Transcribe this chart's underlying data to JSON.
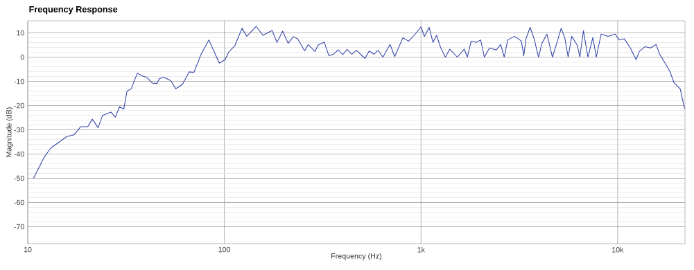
{
  "chart_data": {
    "type": "line",
    "title": "Frequency Response",
    "xlabel": "Frequency (Hz)",
    "ylabel": "Magnitude (dB)",
    "log": "x",
    "grid": true,
    "xlim": [
      10,
      22000
    ],
    "ylim": [
      -77,
      15
    ],
    "xticks": [
      10,
      100,
      {
        "value": 1000,
        "label": "1k"
      },
      {
        "value": 10000,
        "label": "10k"
      }
    ],
    "yticks": [
      -70,
      -60,
      -50,
      -40,
      -30,
      -20,
      -10,
      0,
      10
    ],
    "x": [
      10.7,
      12.1,
      13.1,
      14.2,
      15.8,
      17.2,
      18.6,
      20.2,
      21.3,
      22.8,
      24.0,
      26.5,
      27.9,
      29.3,
      30.8,
      32.0,
      33.6,
      36.1,
      38.1,
      40.3,
      43.0,
      45.4,
      46.6,
      49.2,
      53.4,
      56.6,
      61.2,
      66.3,
      70.0,
      75.9,
      83.4,
      89.2,
      94.3,
      101,
      105,
      113,
      123,
      130,
      145,
      157,
      175,
      185,
      198,
      211,
      224,
      236,
      256,
      267,
      289,
      300,
      322,
      340,
      358,
      380,
      400,
      420,
      445,
      470,
      495,
      519,
      545,
      576,
      605,
      640,
      696,
      735,
      809,
      864,
      935,
      1000,
      1040,
      1100,
      1150,
      1200,
      1260,
      1330,
      1400,
      1530,
      1660,
      1720,
      1800,
      1920,
      2010,
      2100,
      2230,
      2410,
      2540,
      2650,
      2760,
      2990,
      3240,
      3330,
      3420,
      3590,
      3760,
      3960,
      4120,
      4370,
      4660,
      4940,
      5160,
      5380,
      5600,
      5840,
      6240,
      6420,
      6700,
      7060,
      7480,
      7790,
      8240,
      8940,
      9710,
      10200,
      10800,
      11600,
      12400,
      12900,
      13800,
      14700,
      15700,
      16300,
      17400,
      18400,
      19400,
      20800,
      21900
    ],
    "series": [
      {
        "color": "#3344aa",
        "values": [
          -50,
          -41.4,
          -37.5,
          -35.5,
          -32.8,
          -32.1,
          -28.7,
          -28.7,
          -25.6,
          -29.1,
          -24.1,
          -22.7,
          -24.8,
          -20.5,
          -21.4,
          -14.0,
          -13.1,
          -6.6,
          -7.8,
          -8.3,
          -10.7,
          -10.9,
          -8.9,
          -8.3,
          -9.7,
          -13.1,
          -11.2,
          -6.1,
          -6.3,
          0.9,
          7.1,
          1.8,
          -2.5,
          -1.0,
          2.0,
          4.7,
          11.9,
          8.6,
          12.7,
          9.0,
          11.0,
          6.1,
          10.7,
          5.7,
          8.4,
          7.6,
          2.6,
          5.2,
          2.3,
          5.0,
          6.2,
          0.6,
          1.2,
          3.0,
          1.0,
          3.2,
          1.2,
          2.8,
          1.0,
          -0.5,
          2.5,
          1.2,
          2.8,
          0,
          5.2,
          0.2,
          8.0,
          6.6,
          9.5,
          12.5,
          8.5,
          12.3,
          6.1,
          9.0,
          3.8,
          0,
          3.3,
          0,
          3.3,
          0,
          6.6,
          6.1,
          7.1,
          0,
          3.8,
          2.9,
          5.2,
          0,
          7.1,
          8.6,
          6.6,
          0.5,
          7.6,
          12.3,
          7.6,
          0,
          5.7,
          9.5,
          0,
          6.6,
          11.9,
          8.1,
          0,
          8.6,
          4.8,
          0,
          10.9,
          0,
          8.1,
          0,
          9.5,
          8.6,
          9.5,
          7.1,
          7.6,
          3.8,
          -1.0,
          2.4,
          4.3,
          3.8,
          5.2,
          1.4,
          -2.4,
          -5.8,
          -10.7,
          -13.1,
          -21.3
        ]
      }
    ]
  }
}
